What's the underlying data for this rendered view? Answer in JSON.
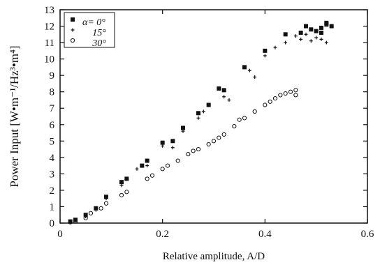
{
  "chart_data": {
    "type": "scatter",
    "title": "",
    "xlabel": "Relative amplitude, A/D",
    "ylabel": "Power Input [W•m⁻¹/Hz³•m⁴]",
    "xlim": [
      0,
      0.6
    ],
    "ylim": [
      0,
      13
    ],
    "xticks": [
      0,
      0.2,
      0.4,
      0.6
    ],
    "xtick_labels": [
      "0",
      "0.2",
      "0.4",
      "0.6"
    ],
    "yticks": [
      0,
      1,
      2,
      3,
      4,
      5,
      6,
      7,
      8,
      9,
      10,
      11,
      12,
      13
    ],
    "ytick_labels": [
      "0",
      "1",
      "2",
      "3",
      "4",
      "5",
      "6",
      "7",
      "8",
      "9",
      "10",
      "11",
      "12",
      "13"
    ],
    "grid": false,
    "legend_position": "top-left",
    "series": [
      {
        "name": "α= 0°",
        "marker": "square",
        "color": "#111111",
        "points": [
          [
            0.02,
            0.1
          ],
          [
            0.03,
            0.2
          ],
          [
            0.05,
            0.5
          ],
          [
            0.07,
            0.9
          ],
          [
            0.09,
            1.6
          ],
          [
            0.12,
            2.5
          ],
          [
            0.13,
            2.7
          ],
          [
            0.16,
            3.5
          ],
          [
            0.17,
            3.8
          ],
          [
            0.2,
            4.9
          ],
          [
            0.22,
            5.0
          ],
          [
            0.24,
            5.8
          ],
          [
            0.27,
            6.7
          ],
          [
            0.29,
            7.2
          ],
          [
            0.31,
            8.2
          ],
          [
            0.32,
            8.1
          ],
          [
            0.36,
            9.5
          ],
          [
            0.4,
            10.5
          ],
          [
            0.44,
            11.5
          ],
          [
            0.47,
            11.6
          ],
          [
            0.48,
            12.0
          ],
          [
            0.49,
            11.8
          ],
          [
            0.5,
            11.7
          ],
          [
            0.51,
            11.9
          ],
          [
            0.51,
            11.6
          ],
          [
            0.52,
            12.1
          ],
          [
            0.52,
            12.2
          ],
          [
            0.53,
            12.0
          ]
        ]
      },
      {
        "name": "15°",
        "marker": "plus",
        "color": "#111111",
        "points": [
          [
            0.02,
            0.05
          ],
          [
            0.03,
            0.15
          ],
          [
            0.05,
            0.4
          ],
          [
            0.07,
            0.8
          ],
          [
            0.09,
            1.5
          ],
          [
            0.12,
            2.3
          ],
          [
            0.15,
            3.3
          ],
          [
            0.17,
            3.5
          ],
          [
            0.2,
            4.7
          ],
          [
            0.22,
            4.6
          ],
          [
            0.24,
            5.6
          ],
          [
            0.27,
            6.4
          ],
          [
            0.28,
            6.8
          ],
          [
            0.32,
            7.7
          ],
          [
            0.33,
            7.5
          ],
          [
            0.37,
            9.3
          ],
          [
            0.38,
            8.9
          ],
          [
            0.4,
            10.2
          ],
          [
            0.42,
            10.7
          ],
          [
            0.44,
            11.0
          ],
          [
            0.46,
            11.4
          ],
          [
            0.47,
            11.2
          ],
          [
            0.48,
            11.5
          ],
          [
            0.49,
            11.1
          ],
          [
            0.5,
            11.3
          ],
          [
            0.51,
            11.2
          ],
          [
            0.52,
            11.0
          ]
        ]
      },
      {
        "name": "30°",
        "marker": "circle",
        "color": "#111111",
        "points": [
          [
            0.02,
            0.05
          ],
          [
            0.03,
            0.1
          ],
          [
            0.05,
            0.3
          ],
          [
            0.06,
            0.6
          ],
          [
            0.08,
            0.9
          ],
          [
            0.09,
            1.2
          ],
          [
            0.12,
            1.7
          ],
          [
            0.13,
            1.9
          ],
          [
            0.17,
            2.7
          ],
          [
            0.18,
            2.9
          ],
          [
            0.2,
            3.3
          ],
          [
            0.21,
            3.5
          ],
          [
            0.23,
            3.8
          ],
          [
            0.25,
            4.2
          ],
          [
            0.26,
            4.4
          ],
          [
            0.27,
            4.5
          ],
          [
            0.29,
            4.8
          ],
          [
            0.3,
            5.0
          ],
          [
            0.31,
            5.2
          ],
          [
            0.32,
            5.4
          ],
          [
            0.34,
            5.9
          ],
          [
            0.35,
            6.3
          ],
          [
            0.36,
            6.4
          ],
          [
            0.38,
            6.8
          ],
          [
            0.4,
            7.2
          ],
          [
            0.41,
            7.4
          ],
          [
            0.42,
            7.6
          ],
          [
            0.43,
            7.8
          ],
          [
            0.44,
            7.9
          ],
          [
            0.45,
            8.0
          ],
          [
            0.46,
            8.1
          ],
          [
            0.46,
            7.8
          ]
        ]
      }
    ]
  }
}
